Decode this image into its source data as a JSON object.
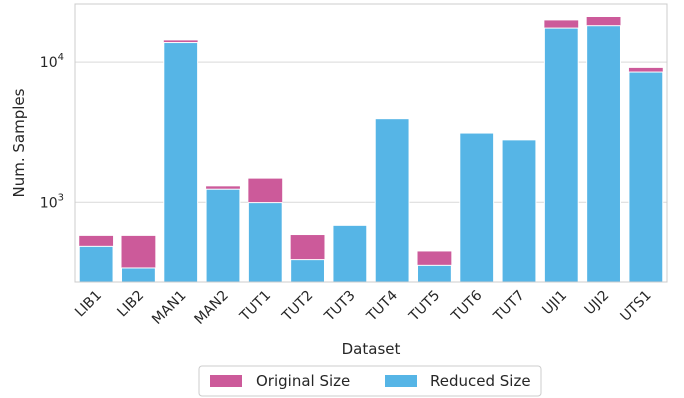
{
  "chart_data": {
    "type": "bar",
    "stacked_overlay": true,
    "y_scale": "log",
    "xlabel": "Dataset",
    "ylabel": "Num. Samples",
    "ylim": [
      270,
      26000
    ],
    "y_ticks": [
      {
        "value": 1000,
        "label_base": "10",
        "label_exp": "3"
      },
      {
        "value": 10000,
        "label_base": "10",
        "label_exp": "4"
      }
    ],
    "grid": "horizontal",
    "legend_position": "bottom-center",
    "categories": [
      "LIB1",
      "LIB2",
      "MAN1",
      "MAN2",
      "TUT1",
      "TUT2",
      "TUT3",
      "TUT4",
      "TUT5",
      "TUT6",
      "TUT7",
      "UJI1",
      "UJI2",
      "UTS1"
    ],
    "series": [
      {
        "name": "Original Size",
        "color": "#cc5a9a",
        "values": [
          576,
          576,
          14300,
          1300,
          1476,
          584,
          685,
          3951,
          446,
          3120,
          2790,
          19860,
          21000,
          9100
        ]
      },
      {
        "name": "Reduced Size",
        "color": "#56b5e6",
        "values": [
          485,
          340,
          13800,
          1240,
          995,
          390,
          685,
          3951,
          355,
          3120,
          2790,
          17500,
          18200,
          8500
        ]
      }
    ]
  }
}
